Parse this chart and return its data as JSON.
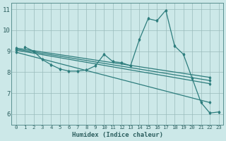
{
  "xlabel": "Humidex (Indice chaleur)",
  "bg_color": "#cce8e8",
  "line_color": "#2d7d7d",
  "grid_color": "#99bbbb",
  "xmin": -0.5,
  "xmax": 23.5,
  "ymin": 5.5,
  "ymax": 11.3,
  "yticks": [
    6,
    7,
    8,
    9,
    10,
    11
  ],
  "xticks": [
    0,
    1,
    2,
    3,
    4,
    5,
    6,
    7,
    8,
    9,
    10,
    11,
    12,
    13,
    14,
    15,
    16,
    17,
    18,
    19,
    20,
    21,
    22,
    23
  ],
  "main_line": [
    9.2,
    9.0,
    8.6,
    8.35,
    8.15,
    8.05,
    8.05,
    8.1,
    8.3,
    8.85,
    8.5,
    8.45,
    8.3,
    9.55,
    10.55,
    10.45,
    10.95,
    9.25,
    8.85,
    7.7,
    6.55,
    6.05,
    6.1
  ],
  "straight_lines": [
    {
      "x0": 0,
      "y0": 9.15,
      "x1": 22,
      "y1": 7.75
    },
    {
      "x0": 0,
      "y0": 9.1,
      "x1": 22,
      "y1": 7.6
    },
    {
      "x0": 0,
      "y0": 9.05,
      "x1": 22,
      "y1": 7.45
    },
    {
      "x0": 0,
      "y0": 8.95,
      "x1": 22,
      "y1": 6.55
    }
  ]
}
